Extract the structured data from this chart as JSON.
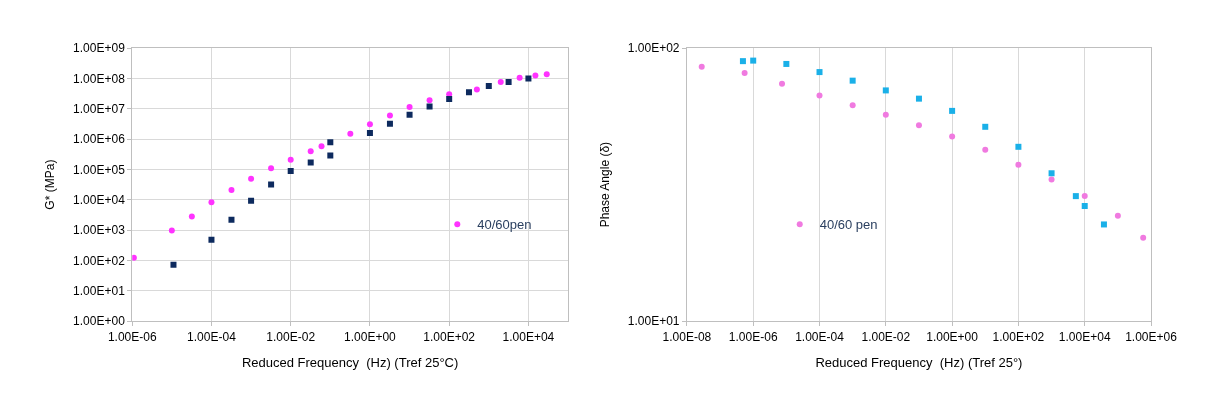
{
  "chart_data": [
    {
      "type": "scatter",
      "xlabel": "Reduced Frequency  (Hz) (Tref 25°C)",
      "ylabel": "G* (MPa)",
      "log": "xy",
      "grid": true,
      "legend": "bottom right",
      "xlim": [
        1e-06,
        100000.0
      ],
      "ylim": [
        1,
        1000000000.0
      ],
      "xticks": [
        {
          "value": 1e-06,
          "label": "1.00E-06"
        },
        {
          "value": 0.0001,
          "label": "1.00E-04"
        },
        {
          "value": 0.01,
          "label": "1.00E-02"
        },
        {
          "value": 1,
          "label": "1.00E+00"
        },
        {
          "value": 100.0,
          "label": "1.00E+02"
        },
        {
          "value": 10000.0,
          "label": "1.00E+04"
        }
      ],
      "yticks": [
        {
          "value": 1,
          "label": "1.00E+00"
        },
        {
          "value": 10,
          "label": "1.00E+01"
        },
        {
          "value": 100,
          "label": "1.00E+02"
        },
        {
          "value": 1000,
          "label": "1.00E+03"
        },
        {
          "value": 10000.0,
          "label": "1.00E+04"
        },
        {
          "value": 100000.0,
          "label": "1.00E+05"
        },
        {
          "value": 1000000.0,
          "label": "1.00E+06"
        },
        {
          "value": 10000000.0,
          "label": "1.00E+07"
        },
        {
          "value": 100000000.0,
          "label": "1.00E+08"
        },
        {
          "value": 1000000000.0,
          "label": "1.00E+09"
        }
      ],
      "series": [
        {
          "name": "40/60pen",
          "color": "#ff33ff",
          "marker": "circle",
          "x": [
            1.1e-06,
            1e-05,
            3.2e-05,
            0.0001,
            0.00032,
            0.001,
            0.0032,
            0.01,
            0.032,
            0.06,
            0.32,
            1,
            3.2,
            10,
            32,
            100,
            500,
            2000,
            6000,
            15000.0,
            29000.0
          ],
          "values": [
            123,
            980,
            2800,
            8300,
            21000,
            49000,
            110000,
            210000,
            400000,
            580000,
            1500000.0,
            3100000.0,
            6000000.0,
            11500000.0,
            19000000.0,
            30000000.0,
            43000000.0,
            76000000.0,
            105000000.0,
            126000000.0,
            138000000.0
          ]
        },
        {
          "color": "#0d2a5e",
          "marker": "square",
          "x": [
            1.1e-05,
            0.0001,
            0.00032,
            0.001,
            0.0032,
            0.01,
            0.032,
            0.1,
            0.1,
            1,
            3.2,
            10,
            32,
            100,
            316,
            1000,
            3162,
            10000.0
          ],
          "values": [
            72,
            480,
            2200,
            9300,
            32000,
            89000,
            170000,
            290000,
            790000,
            1600000.0,
            3200000.0,
            6300000.0,
            12000000.0,
            21000000.0,
            35000000.0,
            56000000.0,
            76000000.0,
            100000000.0
          ]
        }
      ]
    },
    {
      "type": "scatter",
      "xlabel": "Reduced Frequency  (Hz) (Tref 25°)",
      "ylabel": "Phase Angle (δ)",
      "log": "xy",
      "grid": "x",
      "legend": "bottom left",
      "xlim": [
        1e-08,
        1000000.0
      ],
      "ylim": [
        10,
        100
      ],
      "xticks": [
        {
          "value": 1e-08,
          "label": "1.00E-08"
        },
        {
          "value": 1e-06,
          "label": "1.00E-06"
        },
        {
          "value": 0.0001,
          "label": "1.00E-04"
        },
        {
          "value": 0.01,
          "label": "1.00E-02"
        },
        {
          "value": 1,
          "label": "1.00E+00"
        },
        {
          "value": 100.0,
          "label": "1.00E+02"
        },
        {
          "value": 10000.0,
          "label": "1.00E+04"
        },
        {
          "value": 1000000.0,
          "label": "1.00E+06"
        }
      ],
      "yticks": [
        {
          "value": 10,
          "label": "1.00E+01"
        },
        {
          "value": 100,
          "label": "1.00E+02"
        }
      ],
      "series": [
        {
          "name": "40/60 pen",
          "color": "#f07ae0",
          "marker": "circle",
          "x": [
            2.8e-08,
            5.5e-07,
            7.4e-06,
            0.0001,
            0.001,
            0.01,
            0.1,
            1,
            10,
            100,
            1000,
            10000.0,
            100000.0,
            580000.0
          ],
          "values": [
            85.5,
            81,
            74,
            67,
            61.7,
            57,
            52.2,
            47.5,
            42.4,
            37.4,
            33,
            28.7,
            24.3,
            20.2
          ]
        },
        {
          "color": "#1ab0e8",
          "marker": "square",
          "x": [
            4.9e-07,
            1e-06,
            1e-05,
            0.0001,
            0.001,
            0.01,
            0.1,
            1,
            10,
            100,
            1000,
            5400.0,
            10000.0,
            38000.0
          ],
          "values": [
            89.6,
            90,
            87.5,
            81.7,
            76,
            70,
            65.3,
            58.9,
            51.5,
            43.5,
            34.8,
            28.7,
            26.4,
            22.6
          ]
        }
      ]
    }
  ]
}
